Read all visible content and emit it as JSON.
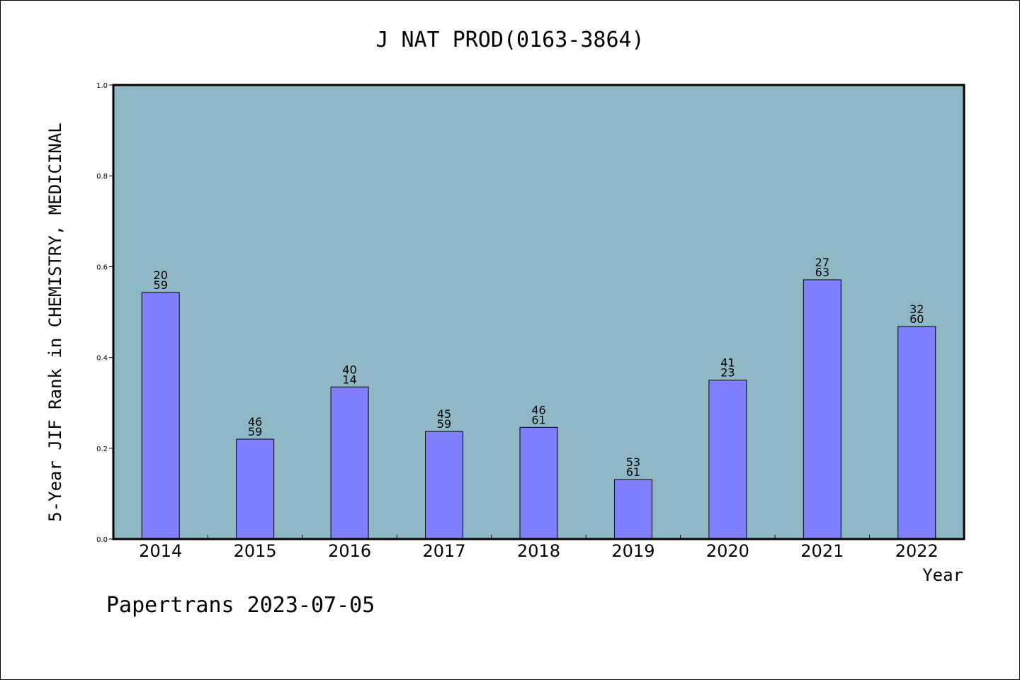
{
  "chart_data": {
    "type": "bar",
    "title": "J NAT PROD(0163-3864)",
    "xlabel": "Year",
    "ylabel": "5-Year JIF Rank in CHEMISTRY, MEDICINAL",
    "categories": [
      "2014",
      "2015",
      "2016",
      "2017",
      "2018",
      "2019",
      "2020",
      "2021",
      "2022"
    ],
    "values": [
      0.543,
      0.22,
      0.335,
      0.237,
      0.246,
      0.131,
      0.35,
      0.571,
      0.468
    ],
    "bar_labels": [
      [
        "20",
        "59"
      ],
      [
        "46",
        "59"
      ],
      [
        "40",
        "14"
      ],
      [
        "45",
        "59"
      ],
      [
        "46",
        "61"
      ],
      [
        "53",
        "61"
      ],
      [
        "41",
        "23"
      ],
      [
        "27",
        "63"
      ],
      [
        "32",
        "60"
      ]
    ],
    "ylim": [
      0,
      1.0
    ],
    "yticks": [
      "0.0",
      "0.2",
      "0.4",
      "0.6",
      "0.8",
      "1.0"
    ],
    "grid": false,
    "colors": {
      "plot_background": "#8fb8c6",
      "bar_fill": "#8080ff",
      "bar_stroke": "#000000"
    }
  },
  "footer": {
    "watermark": "Papertrans 2023-07-05"
  }
}
